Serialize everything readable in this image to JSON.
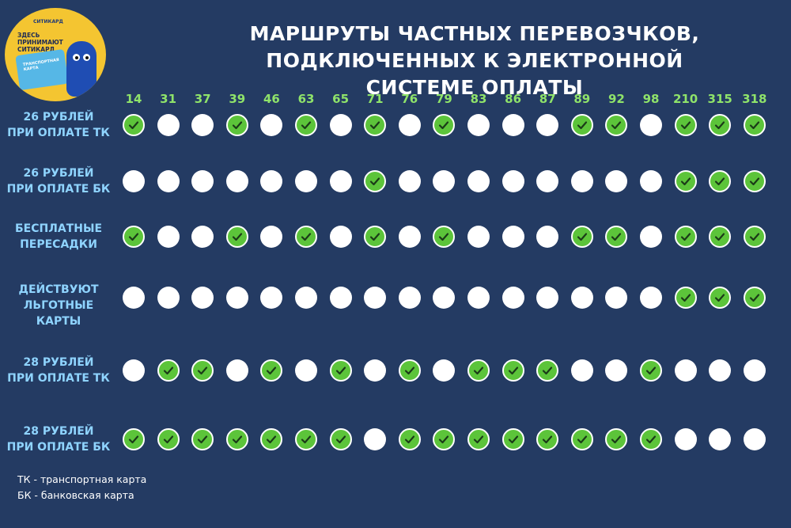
{
  "logo": {
    "brand": "СИТИКАРД",
    "text": "ЗДЕСЬ ПРИНИМАЮТ СИТИКАРД",
    "card_text": "ТРАНСПОРТНАЯ КАРТА"
  },
  "title": {
    "line1": "МАРШРУТЫ ЧАСТНЫХ ПЕРЕВОЗЧКОВ,",
    "line2": "ПОДКЛЮЧЕННЫХ К ЭЛЕКТРОННОЙ СИСТЕМЕ ОПЛАТЫ"
  },
  "routes": [
    "14",
    "31",
    "37",
    "39",
    "46",
    "63",
    "65",
    "71",
    "76",
    "79",
    "83",
    "86",
    "87",
    "89",
    "92",
    "98",
    "210",
    "315",
    "318"
  ],
  "rows": [
    {
      "label1": "26 РУБЛЕЙ",
      "label2": "ПРИ ОПЛАТЕ ТК",
      "marks": [
        1,
        0,
        0,
        1,
        0,
        1,
        0,
        1,
        0,
        1,
        0,
        0,
        0,
        1,
        1,
        0,
        1,
        1,
        1
      ]
    },
    {
      "label1": "26 РУБЛЕЙ",
      "label2": "ПРИ ОПЛАТЕ БК",
      "marks": [
        0,
        0,
        0,
        0,
        0,
        0,
        0,
        1,
        0,
        0,
        0,
        0,
        0,
        0,
        0,
        0,
        1,
        1,
        1
      ]
    },
    {
      "label1": "БЕСПЛАТНЫЕ",
      "label2": "ПЕРЕСАДКИ",
      "marks": [
        1,
        0,
        0,
        1,
        0,
        1,
        0,
        1,
        0,
        1,
        0,
        0,
        0,
        1,
        1,
        0,
        1,
        1,
        1
      ]
    },
    {
      "label1": "ДЕЙСТВУЮТ",
      "label2": "ЛЬГОТНЫЕ КАРТЫ",
      "marks": [
        0,
        0,
        0,
        0,
        0,
        0,
        0,
        0,
        0,
        0,
        0,
        0,
        0,
        0,
        0,
        0,
        1,
        1,
        1
      ]
    },
    {
      "label1": "28 РУБЛЕЙ",
      "label2": "ПРИ ОПЛАТЕ ТК",
      "marks": [
        0,
        1,
        1,
        0,
        1,
        0,
        1,
        0,
        1,
        0,
        1,
        1,
        1,
        0,
        0,
        1,
        0,
        0,
        0
      ]
    },
    {
      "label1": "28 РУБЛЕЙ",
      "label2": "ПРИ ОПЛАТЕ БК",
      "marks": [
        1,
        1,
        1,
        1,
        1,
        1,
        1,
        0,
        1,
        1,
        1,
        1,
        1,
        1,
        1,
        1,
        0,
        0,
        0
      ]
    }
  ],
  "legend": {
    "tk": "ТК - транспортная карта",
    "bk": "БК - банковская карта"
  },
  "colors": {
    "background": "#243b63",
    "check": "#5cc43a",
    "route_numbers": "#8fe36a",
    "row_labels": "#8fd4ff"
  }
}
